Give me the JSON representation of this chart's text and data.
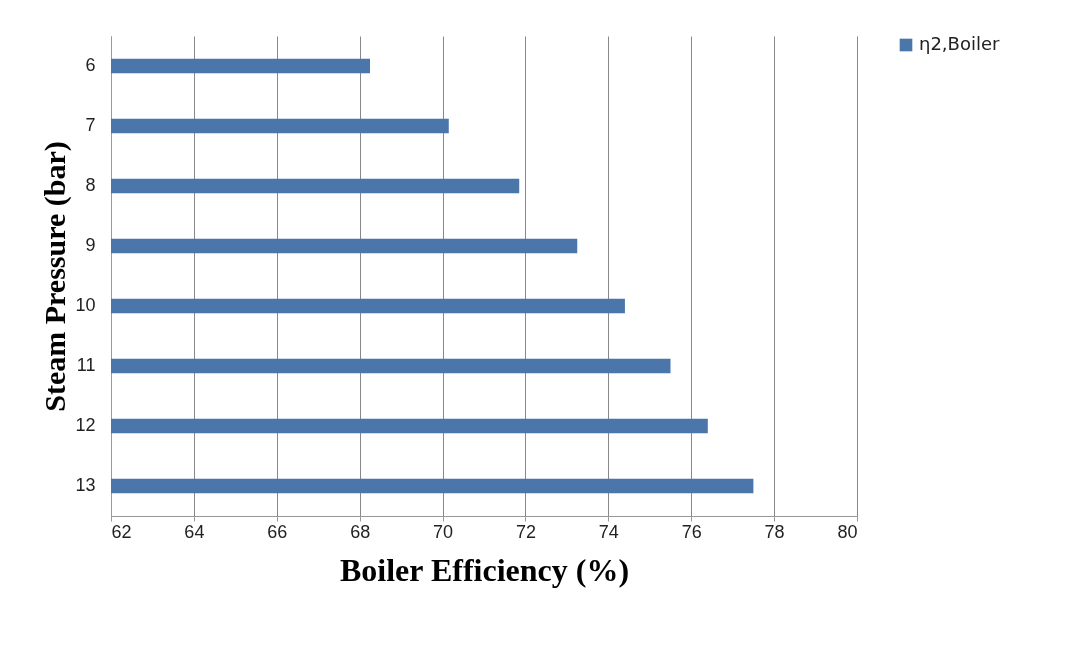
{
  "chart_data": {
    "type": "bar",
    "orientation": "horizontal",
    "xlabel": "Boiler Efficiency (%)",
    "ylabel": "Steam Pressure  (bar)",
    "categories": [
      "6",
      "7",
      "8",
      "9",
      "10",
      "11",
      "12",
      "13"
    ],
    "series": [
      {
        "name": "η2,Boiler",
        "color": "#4a76aa",
        "values": [
          68.25,
          70.15,
          71.85,
          73.25,
          74.4,
          75.5,
          76.4,
          77.5
        ]
      }
    ],
    "xlim": [
      62,
      80
    ],
    "xticks": [
      62,
      64,
      66,
      68,
      70,
      72,
      74,
      76,
      78,
      80
    ],
    "grid": "x",
    "legend": "right"
  }
}
